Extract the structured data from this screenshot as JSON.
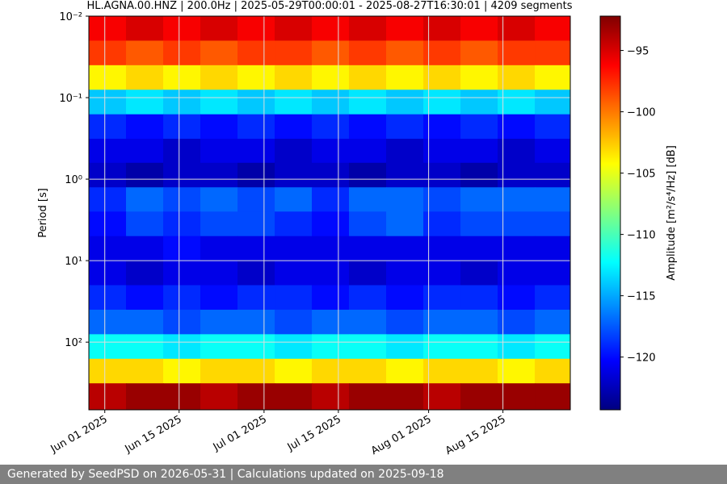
{
  "chart_data": {
    "type": "heatmap",
    "title": "HL.AGNA.00.HNZ | 200.0Hz | 2025-05-29T00:00:01 - 2025-08-27T16:30:01 | 4209 segments",
    "y_label": "Period [s]",
    "colorbar_label": "Amplitude [m²/s⁴/Hz] [dB]",
    "xlim": [
      "2025-05-29T00:00:01Z",
      "2025-08-27T16:30:01Z"
    ],
    "xticks": [
      {
        "value": "2025-06-01",
        "label": "Jun 01 2025"
      },
      {
        "value": "2025-06-15",
        "label": "Jun 15 2025"
      },
      {
        "value": "2025-07-01",
        "label": "Jul 01 2025"
      },
      {
        "value": "2025-07-15",
        "label": "Jul 15 2025"
      },
      {
        "value": "2025-08-01",
        "label": "Aug 01 2025"
      },
      {
        "value": "2025-08-15",
        "label": "Aug 15 2025"
      }
    ],
    "ylim": [
      0.01,
      676
    ],
    "y_scale": "log",
    "y_inverted": true,
    "yticks": [
      {
        "value": 0.01,
        "label": "10⁻²"
      },
      {
        "value": 0.1,
        "label": "10⁻¹"
      },
      {
        "value": 1,
        "label": "10⁰"
      },
      {
        "value": 10,
        "label": "10¹"
      },
      {
        "value": 100,
        "label": "10²"
      }
    ],
    "grid": true,
    "colormap": "jet",
    "clim": [
      -124.3,
      -92.2
    ],
    "cticks": [
      {
        "value": -95,
        "label": "−95"
      },
      {
        "value": -100,
        "label": "−100"
      },
      {
        "value": -105,
        "label": "−105"
      },
      {
        "value": -110,
        "label": "−110"
      },
      {
        "value": -115,
        "label": "−115"
      },
      {
        "value": -120,
        "label": "−120"
      }
    ],
    "xedges": [
      "2025-05-29",
      "2025-06-05",
      "2025-06-12",
      "2025-06-19",
      "2025-06-26",
      "2025-07-03",
      "2025-07-10",
      "2025-07-17",
      "2025-07-24",
      "2025-07-31",
      "2025-08-07",
      "2025-08-14",
      "2025-08-21",
      "2025-08-28"
    ],
    "yedges": [
      0.01,
      0.02,
      0.04,
      0.08,
      0.16,
      0.32,
      0.63,
      1.26,
      2.5,
      5,
      10,
      20,
      40,
      80,
      160,
      320,
      676
    ],
    "z": [
      [
        -96,
        -95,
        -96,
        -95,
        -96,
        -95,
        -96,
        -95,
        -96,
        -95,
        -96,
        -95,
        -96
      ],
      [
        -98,
        -99,
        -98,
        -99,
        -98,
        -98,
        -99,
        -98,
        -99,
        -98,
        -99,
        -98,
        -98
      ],
      [
        -104,
        -103,
        -104,
        -103,
        -104,
        -103,
        -104,
        -103,
        -104,
        -103,
        -104,
        -103,
        -104
      ],
      [
        -114,
        -113,
        -114,
        -113,
        -114,
        -113,
        -114,
        -113,
        -114,
        -113,
        -114,
        -113,
        -114
      ],
      [
        -119,
        -120,
        -119,
        -120,
        -119,
        -120,
        -119,
        -120,
        -119,
        -120,
        -119,
        -120,
        -119
      ],
      [
        -121,
        -121,
        -122,
        -121,
        -121,
        -122,
        -121,
        -121,
        -122,
        -121,
        -121,
        -122,
        -121
      ],
      [
        -122,
        -123,
        -122,
        -122,
        -123,
        -122,
        -122,
        -123,
        -122,
        -122,
        -123,
        -122,
        -122
      ],
      [
        -119,
        -117,
        -118,
        -117,
        -118,
        -117,
        -119,
        -117,
        -117,
        -118,
        -117,
        -117,
        -117
      ],
      [
        -120,
        -118,
        -119,
        -118,
        -118,
        -119,
        -120,
        -118,
        -117,
        -119,
        -118,
        -118,
        -118
      ],
      [
        -121,
        -121,
        -120,
        -121,
        -121,
        -121,
        -121,
        -121,
        -121,
        -121,
        -121,
        -121,
        -121
      ],
      [
        -121,
        -122,
        -121,
        -121,
        -122,
        -121,
        -121,
        -122,
        -121,
        -121,
        -122,
        -121,
        -121
      ],
      [
        -119,
        -120,
        -119,
        -120,
        -119,
        -119,
        -120,
        -119,
        -120,
        -119,
        -119,
        -120,
        -119
      ],
      [
        -117,
        -117,
        -118,
        -117,
        -117,
        -118,
        -117,
        -117,
        -118,
        -117,
        -117,
        -118,
        -117
      ],
      [
        -112,
        -112,
        -113,
        -112,
        -112,
        -113,
        -112,
        -112,
        -113,
        -112,
        -112,
        -113,
        -112
      ],
      [
        -103,
        -103,
        -104,
        -103,
        -103,
        -104,
        -103,
        -103,
        -104,
        -103,
        -103,
        -104,
        -103
      ],
      [
        -94,
        -93,
        -93,
        -94,
        -93,
        -93,
        -94,
        -93,
        -93,
        -94,
        -93,
        -93,
        -93
      ]
    ]
  },
  "footer": "Generated by SeedPSD on 2026-05-31 | Calculations updated on 2025-09-18"
}
